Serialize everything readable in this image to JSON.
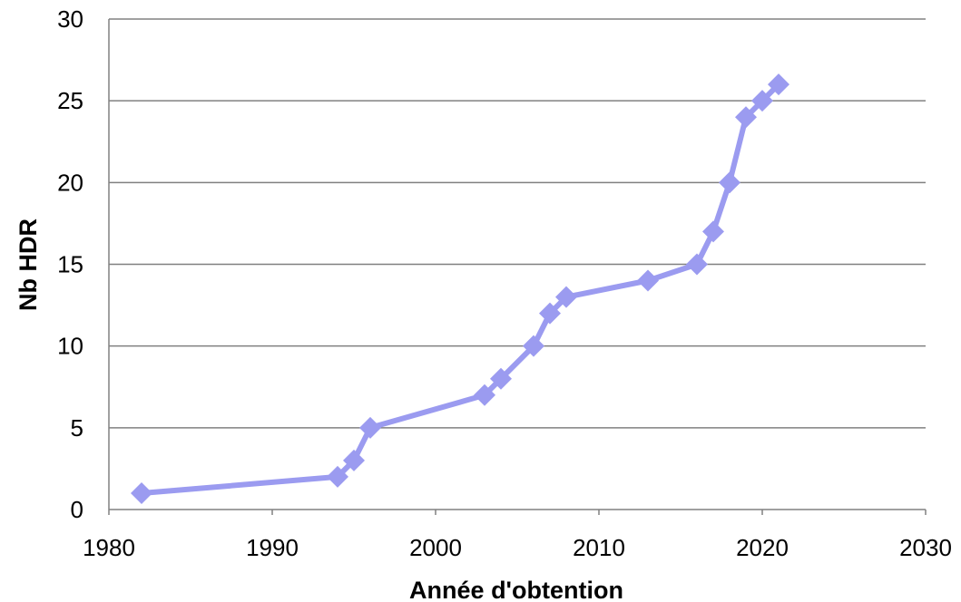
{
  "chart_data": {
    "type": "line",
    "xlabel": "Année d'obtention",
    "ylabel": "Nb HDR",
    "xlim": [
      1980,
      2030
    ],
    "ylim": [
      0,
      30
    ],
    "x_ticks": [
      "1980",
      "1990",
      "2000",
      "2010",
      "2020",
      "2030"
    ],
    "y_ticks": [
      "0",
      "5",
      "10",
      "15",
      "20",
      "25",
      "30"
    ],
    "grid": "horizontal",
    "legend": "none",
    "series": [
      {
        "color": "#9b9bf0",
        "marker": "diamond",
        "points": [
          {
            "x": 1982,
            "y": 1
          },
          {
            "x": 1994,
            "y": 2
          },
          {
            "x": 1995,
            "y": 3
          },
          {
            "x": 1996,
            "y": 5
          },
          {
            "x": 2003,
            "y": 7
          },
          {
            "x": 2004,
            "y": 8
          },
          {
            "x": 2006,
            "y": 10
          },
          {
            "x": 2007,
            "y": 12
          },
          {
            "x": 2008,
            "y": 13
          },
          {
            "x": 2013,
            "y": 14
          },
          {
            "x": 2016,
            "y": 15
          },
          {
            "x": 2017,
            "y": 17
          },
          {
            "x": 2018,
            "y": 20
          },
          {
            "x": 2019,
            "y": 24
          },
          {
            "x": 2020,
            "y": 25
          },
          {
            "x": 2021,
            "y": 26
          }
        ]
      }
    ]
  }
}
